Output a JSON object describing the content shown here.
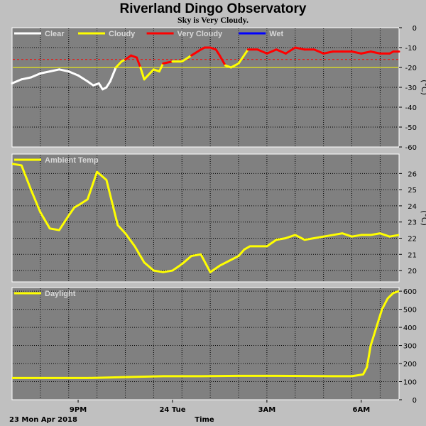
{
  "page": {
    "title": "Riverland Dingo Observatory",
    "subtitle": "Sky is Very Cloudy."
  },
  "chart_data": [
    {
      "type": "line",
      "name": "sky",
      "ylim": [
        -60,
        0
      ],
      "ylabel": "(°C)",
      "yticks": [
        "0",
        "-10",
        "-20",
        "-30",
        "-40",
        "-50",
        "-60"
      ],
      "reference_lines": [
        {
          "y": -16,
          "color": "#ff0000",
          "style": "dashed"
        },
        {
          "y": -20,
          "color": "#ffff00",
          "style": "solid"
        }
      ],
      "legend": [
        {
          "label": "Clear",
          "color": "#ffffff"
        },
        {
          "label": "Cloudy",
          "color": "#ffff00"
        },
        {
          "label": "Very Cloudy",
          "color": "#ff0000"
        },
        {
          "label": "Wet",
          "color": "#0000ff"
        }
      ],
      "x_hours": [
        0,
        0.5,
        1,
        1.5,
        2,
        2.5,
        3,
        3.5,
        4,
        4.3,
        4.6,
        4.8,
        5,
        5.2,
        5.5,
        5.8,
        6,
        6.3,
        6.6,
        6.8,
        7,
        7.2,
        7.5,
        7.8,
        8,
        8.5,
        9,
        9.5,
        10,
        10.2,
        10.5,
        10.8,
        11,
        11.3,
        11.6,
        12,
        12.5,
        13,
        13.5,
        14,
        14.5,
        15,
        15.5,
        16,
        16.5,
        17,
        17.5,
        18,
        18.5,
        19,
        19.5,
        20,
        20.2,
        20.5
      ],
      "values": [
        -28,
        -26,
        -25,
        -23,
        -22,
        -21,
        -22,
        -24,
        -27,
        -29,
        -28,
        -31,
        -30,
        -27,
        -20,
        -17,
        -16,
        -14,
        -15,
        -20,
        -26,
        -24,
        -21,
        -22,
        -18,
        -17,
        -17,
        -14,
        -11,
        -10,
        -10,
        -11,
        -14,
        -19,
        -20,
        -18,
        -11,
        -11,
        -13,
        -11,
        -13,
        -10,
        -11,
        -11,
        -13,
        -12,
        -12,
        -12,
        -13,
        -12,
        -13,
        -13,
        -12,
        -12
      ],
      "segment_colors": [
        "#ffffff",
        "#ffffff",
        "#ffffff",
        "#ffffff",
        "#ffffff",
        "#ffffff",
        "#ffffff",
        "#ffffff",
        "#ffffff",
        "#ffffff",
        "#ffffff",
        "#ffffff",
        "#ffffff",
        "#ffffff",
        "#ffff00",
        "#ffff00",
        "#ff0000",
        "#ff0000",
        "#ff0000",
        "#ffff00",
        "#ffff00",
        "#ffff00",
        "#ffff00",
        "#ffff00",
        "#ff0000",
        "#ffff00",
        "#ffff00",
        "#ff0000",
        "#ff0000",
        "#ff0000",
        "#ff0000",
        "#ff0000",
        "#ff0000",
        "#ffff00",
        "#ffff00",
        "#ffff00",
        "#ff0000",
        "#ff0000",
        "#ff0000",
        "#ff0000",
        "#ff0000",
        "#ff0000",
        "#ff0000",
        "#ff0000",
        "#ff0000",
        "#ff0000",
        "#ff0000",
        "#ff0000",
        "#ff0000",
        "#ff0000",
        "#ff0000",
        "#ff0000",
        "#ff0000"
      ]
    },
    {
      "type": "line",
      "name": "ambient",
      "ylim": [
        19.3,
        27.2
      ],
      "ylabel": "(°C)",
      "yticks": [
        "26",
        "25",
        "24",
        "23",
        "22",
        "21",
        "20"
      ],
      "ytick_values": [
        26,
        25,
        24,
        23,
        22,
        21,
        20
      ],
      "legend": [
        {
          "label": "Ambient Temp",
          "color": "#ffff00"
        }
      ],
      "x_hours": [
        0,
        0.5,
        1,
        1.5,
        2,
        2.5,
        3,
        3.3,
        3.6,
        4,
        4.5,
        5,
        5.3,
        5.6,
        6,
        6.5,
        7,
        7.5,
        8,
        8.5,
        9,
        9.5,
        10,
        10.5,
        11,
        11.5,
        12,
        12.3,
        12.6,
        13,
        13.5,
        14,
        14.5,
        15,
        15.5,
        16,
        16.5,
        17,
        17.5,
        18,
        18.5,
        19,
        19.5,
        20,
        20.5
      ],
      "values": [
        26.6,
        26.5,
        25,
        23.6,
        22.6,
        22.5,
        23.4,
        23.9,
        24.1,
        24.4,
        26.1,
        25.6,
        24.2,
        22.8,
        22.3,
        21.5,
        20.5,
        20,
        19.9,
        20,
        20.4,
        20.9,
        21,
        19.9,
        20.3,
        20.6,
        20.9,
        21.3,
        21.5,
        21.5,
        21.5,
        21.9,
        22,
        22.2,
        21.9,
        22,
        22.1,
        22.2,
        22.3,
        22.1,
        22.2,
        22.2,
        22.3,
        22.1,
        22.2
      ]
    },
    {
      "type": "line",
      "name": "daylight",
      "ylim": [
        0,
        620
      ],
      "yticks": [
        "600",
        "500",
        "400",
        "300",
        "200",
        "100",
        "0"
      ],
      "ytick_values": [
        600,
        500,
        400,
        300,
        200,
        100,
        0
      ],
      "legend": [
        {
          "label": "Daylight",
          "color": "#ffff00"
        }
      ],
      "x_hours": [
        0,
        2,
        4,
        6,
        8,
        10,
        12,
        14,
        17,
        18,
        18.6,
        18.8,
        19,
        19.3,
        19.6,
        19.9,
        20.2,
        20.5
      ],
      "values": [
        120,
        120,
        120,
        125,
        130,
        130,
        132,
        132,
        130,
        130,
        140,
        180,
        300,
        400,
        500,
        560,
        590,
        600
      ]
    }
  ],
  "x_axis": {
    "label": "Time",
    "date_label": "23 Mon Apr 2018",
    "ticks": [
      {
        "label": "9PM",
        "hours": 3.5
      },
      {
        "label": "24 Tue",
        "hours": 8.5
      },
      {
        "label": "3AM",
        "hours": 13.5
      },
      {
        "label": "6AM",
        "hours": 18.5
      }
    ],
    "range_hours": [
      0,
      20.5
    ]
  }
}
